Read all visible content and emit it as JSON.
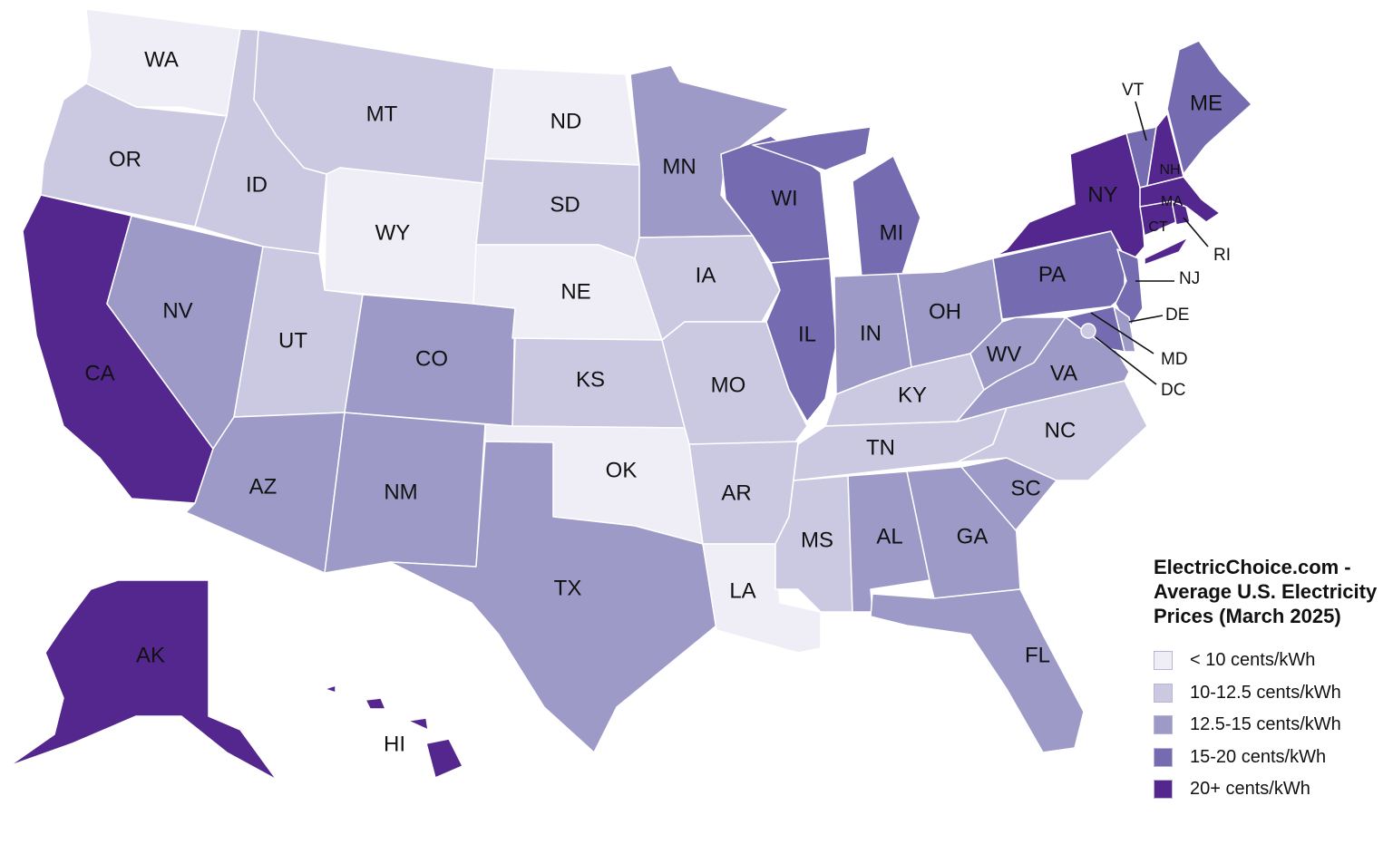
{
  "legend": {
    "title": "ElectricChoice.com - Average U.S. Electricity Prices (March 2025)",
    "items": [
      {
        "label": "< 10 cents/kWh",
        "color": "#efedf5"
      },
      {
        "label": "10-12.5 cents/kWh",
        "color": "#cbc9e2"
      },
      {
        "label": "12.5-15 cents/kWh",
        "color": "#9e9ac8"
      },
      {
        "label": "15-20 cents/kWh",
        "color": "#756bb1"
      },
      {
        "label": "20+ cents/kWh",
        "color": "#54278f"
      }
    ]
  },
  "states": [
    {
      "abbr": "WA",
      "bin": 0
    },
    {
      "abbr": "OR",
      "bin": 1
    },
    {
      "abbr": "CA",
      "bin": 4
    },
    {
      "abbr": "ID",
      "bin": 1
    },
    {
      "abbr": "NV",
      "bin": 2
    },
    {
      "abbr": "MT",
      "bin": 1
    },
    {
      "abbr": "WY",
      "bin": 0
    },
    {
      "abbr": "UT",
      "bin": 1
    },
    {
      "abbr": "AZ",
      "bin": 2
    },
    {
      "abbr": "CO",
      "bin": 2
    },
    {
      "abbr": "NM",
      "bin": 2
    },
    {
      "abbr": "ND",
      "bin": 0
    },
    {
      "abbr": "SD",
      "bin": 1
    },
    {
      "abbr": "NE",
      "bin": 0
    },
    {
      "abbr": "KS",
      "bin": 1
    },
    {
      "abbr": "OK",
      "bin": 0
    },
    {
      "abbr": "TX",
      "bin": 2
    },
    {
      "abbr": "MN",
      "bin": 2
    },
    {
      "abbr": "IA",
      "bin": 1
    },
    {
      "abbr": "MO",
      "bin": 1
    },
    {
      "abbr": "AR",
      "bin": 1
    },
    {
      "abbr": "LA",
      "bin": 0
    },
    {
      "abbr": "WI",
      "bin": 3
    },
    {
      "abbr": "IL",
      "bin": 3
    },
    {
      "abbr": "MI",
      "bin": 3
    },
    {
      "abbr": "IN",
      "bin": 2
    },
    {
      "abbr": "OH",
      "bin": 2
    },
    {
      "abbr": "KY",
      "bin": 1
    },
    {
      "abbr": "TN",
      "bin": 1
    },
    {
      "abbr": "MS",
      "bin": 1
    },
    {
      "abbr": "AL",
      "bin": 2
    },
    {
      "abbr": "GA",
      "bin": 2
    },
    {
      "abbr": "FL",
      "bin": 2
    },
    {
      "abbr": "SC",
      "bin": 2
    },
    {
      "abbr": "NC",
      "bin": 1
    },
    {
      "abbr": "VA",
      "bin": 2
    },
    {
      "abbr": "WV",
      "bin": 2
    },
    {
      "abbr": "PA",
      "bin": 3
    },
    {
      "abbr": "NY",
      "bin": 4
    },
    {
      "abbr": "NJ",
      "bin": 3
    },
    {
      "abbr": "DE",
      "bin": 2
    },
    {
      "abbr": "MD",
      "bin": 3
    },
    {
      "abbr": "DC",
      "bin": 1
    },
    {
      "abbr": "VT",
      "bin": 3
    },
    {
      "abbr": "NH",
      "bin": 4
    },
    {
      "abbr": "ME",
      "bin": 3
    },
    {
      "abbr": "MA",
      "bin": 4
    },
    {
      "abbr": "CT",
      "bin": 4
    },
    {
      "abbr": "RI",
      "bin": 4
    },
    {
      "abbr": "AK",
      "bin": 4
    },
    {
      "abbr": "HI",
      "bin": 4
    }
  ]
}
